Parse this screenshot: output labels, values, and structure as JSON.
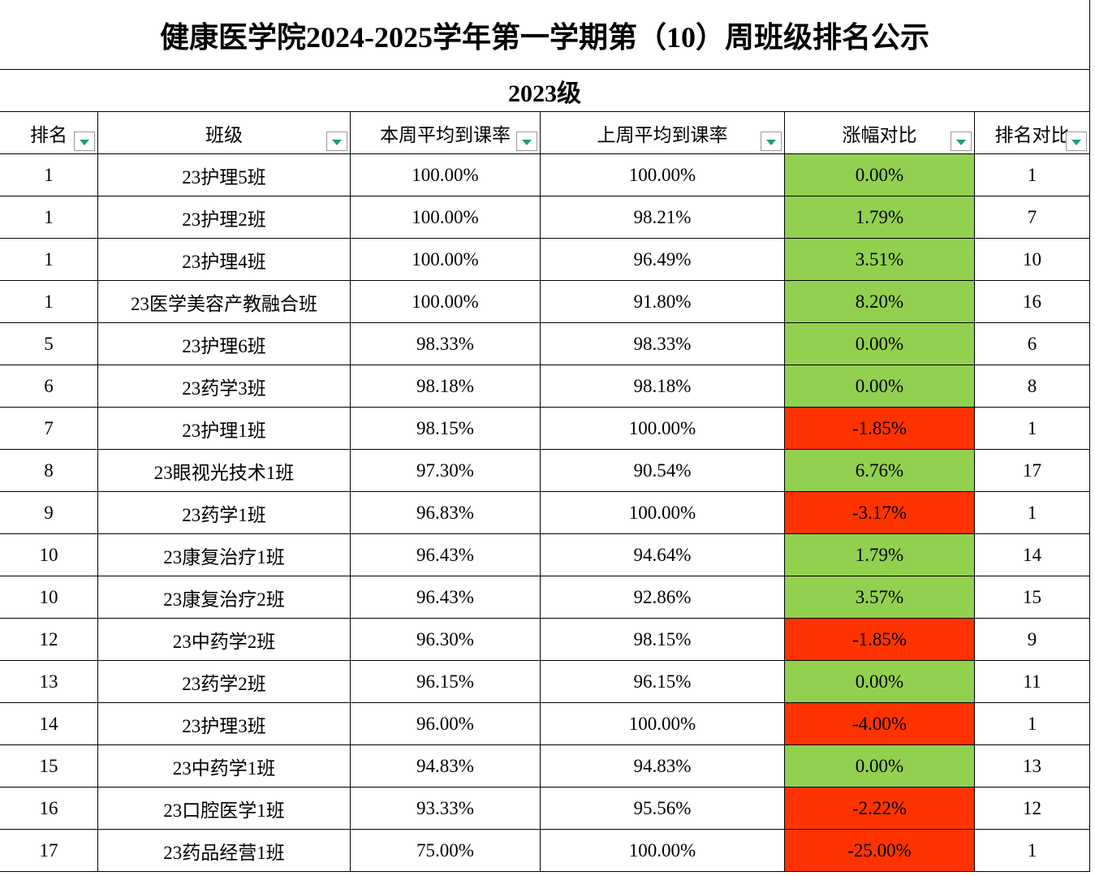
{
  "header": {
    "title": "健康医学院2024-2025学年第一学期第（10）周班级排名公示",
    "subtitle": "2023级"
  },
  "table": {
    "columns": [
      "排名",
      "班级",
      "本周平均到课率",
      "上周平均到课率",
      "涨幅对比",
      "排名对比"
    ],
    "positive_color": "#92d050",
    "negative_color": "#ff3300",
    "rows": [
      [
        "1",
        "23护理5班",
        "100.00%",
        "100.00%",
        "0.00%",
        "1"
      ],
      [
        "1",
        "23护理2班",
        "100.00%",
        "98.21%",
        "1.79%",
        "7"
      ],
      [
        "1",
        "23护理4班",
        "100.00%",
        "96.49%",
        "3.51%",
        "10"
      ],
      [
        "1",
        "23医学美容产教融合班",
        "100.00%",
        "91.80%",
        "8.20%",
        "16"
      ],
      [
        "5",
        "23护理6班",
        "98.33%",
        "98.33%",
        "0.00%",
        "6"
      ],
      [
        "6",
        "23药学3班",
        "98.18%",
        "98.18%",
        "0.00%",
        "8"
      ],
      [
        "7",
        "23护理1班",
        "98.15%",
        "100.00%",
        "-1.85%",
        "1"
      ],
      [
        "8",
        "23眼视光技术1班",
        "97.30%",
        "90.54%",
        "6.76%",
        "17"
      ],
      [
        "9",
        "23药学1班",
        "96.83%",
        "100.00%",
        "-3.17%",
        "1"
      ],
      [
        "10",
        "23康复治疗1班",
        "96.43%",
        "94.64%",
        "1.79%",
        "14"
      ],
      [
        "10",
        "23康复治疗2班",
        "96.43%",
        "92.86%",
        "3.57%",
        "15"
      ],
      [
        "12",
        "23中药学2班",
        "96.30%",
        "98.15%",
        "-1.85%",
        "9"
      ],
      [
        "13",
        "23药学2班",
        "96.15%",
        "96.15%",
        "0.00%",
        "11"
      ],
      [
        "14",
        "23护理3班",
        "96.00%",
        "100.00%",
        "-4.00%",
        "1"
      ],
      [
        "15",
        "23中药学1班",
        "94.83%",
        "94.83%",
        "0.00%",
        "13"
      ],
      [
        "16",
        "23口腔医学1班",
        "93.33%",
        "95.56%",
        "-2.22%",
        "12"
      ],
      [
        "17",
        "23药品经营1班",
        "75.00%",
        "100.00%",
        "-25.00%",
        "1"
      ]
    ]
  }
}
